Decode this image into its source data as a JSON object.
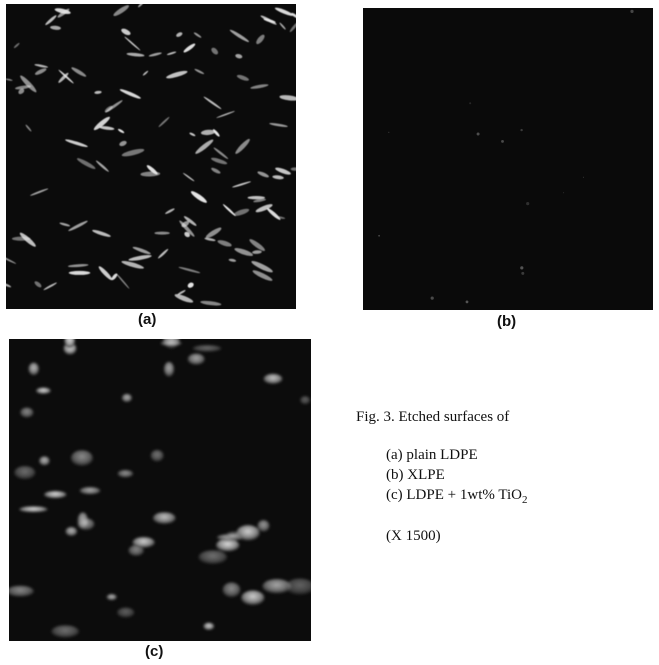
{
  "panels": [
    {
      "id": "a",
      "label": "(a)",
      "texture": "dense-bright-streaks"
    },
    {
      "id": "b",
      "label": "(b)",
      "texture": "nearly-featureless-dark"
    },
    {
      "id": "c",
      "label": "(c)",
      "texture": "rounded-bright-blobs"
    }
  ],
  "caption": {
    "title": "Fig. 3. Etched surfaces of",
    "items": [
      {
        "prefix": "(a) plain LDPE"
      },
      {
        "prefix": "(b) XLPE"
      },
      {
        "prefix": "(c) LDPE + 1wt% TiO",
        "subscript": "2"
      }
    ],
    "magnification": "(X 1500)"
  }
}
